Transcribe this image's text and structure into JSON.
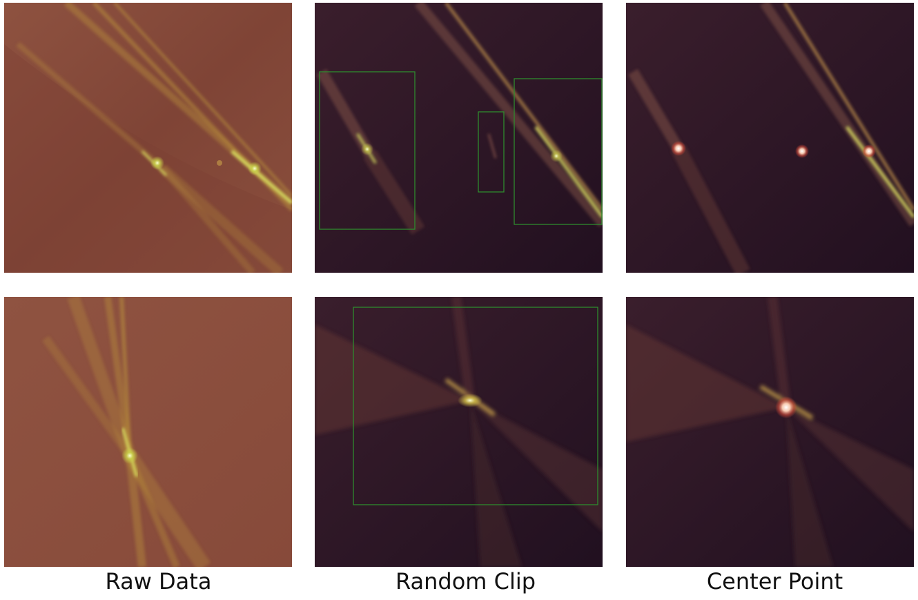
{
  "figure": {
    "columns": [
      {
        "label": "Raw Data"
      },
      {
        "label": "Random Clip"
      },
      {
        "label": "Center Point"
      }
    ],
    "rows": [
      {
        "panels": [
          {
            "kind": "raw",
            "background": "#8a4c3c"
          },
          {
            "kind": "clip",
            "background": "#2a1524",
            "box_count": 3,
            "box_color": "#2e8b2e"
          },
          {
            "kind": "center",
            "background": "#2a1524",
            "point_count": 3
          }
        ]
      },
      {
        "panels": [
          {
            "kind": "raw",
            "background": "#8a4c3c"
          },
          {
            "kind": "clip",
            "background": "#2a1524",
            "box_count": 1,
            "box_color": "#2e8b2e"
          },
          {
            "kind": "center",
            "background": "#2a1524",
            "point_count": 1
          }
        ]
      }
    ]
  }
}
